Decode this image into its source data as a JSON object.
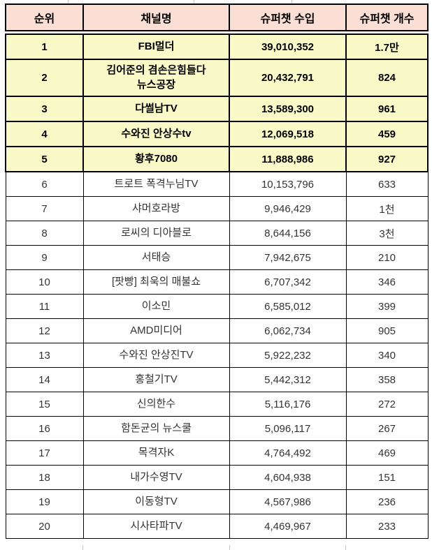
{
  "chart_data": {
    "type": "table",
    "columns": [
      "순위",
      "채널명",
      "슈퍼챗 수입",
      "슈퍼챗 개수"
    ],
    "rows": [
      {
        "rank": "1",
        "channel": "FBI멀더",
        "income": "39,010,352",
        "count": "1.7만",
        "highlight": true
      },
      {
        "rank": "2",
        "channel": "김어준의 겸손은힘들다\n뉴스공장",
        "income": "20,432,791",
        "count": "824",
        "highlight": true
      },
      {
        "rank": "3",
        "channel": "다썰남TV",
        "income": "13,589,300",
        "count": "961",
        "highlight": true
      },
      {
        "rank": "4",
        "channel": "수와진 안상수tv",
        "income": "12,069,518",
        "count": "459",
        "highlight": true
      },
      {
        "rank": "5",
        "channel": "황후7080",
        "income": "11,888,986",
        "count": "927",
        "highlight": true
      },
      {
        "rank": "6",
        "channel": "트로트 폭격누님TV",
        "income": "10,153,796",
        "count": "633",
        "highlight": false
      },
      {
        "rank": "7",
        "channel": "샤머호라방",
        "income": "9,946,429",
        "count": "1천",
        "highlight": false
      },
      {
        "rank": "8",
        "channel": "로씨의 디아블로",
        "income": "8,644,156",
        "count": "3천",
        "highlight": false
      },
      {
        "rank": "9",
        "channel": "서태승",
        "income": "7,942,675",
        "count": "210",
        "highlight": false
      },
      {
        "rank": "10",
        "channel": "[팟빵] 최욱의 매불쇼",
        "income": "6,707,342",
        "count": "346",
        "highlight": false
      },
      {
        "rank": "11",
        "channel": "이소민",
        "income": "6,585,012",
        "count": "399",
        "highlight": false
      },
      {
        "rank": "12",
        "channel": "AMD미디어",
        "income": "6,062,734",
        "count": "905",
        "highlight": false
      },
      {
        "rank": "13",
        "channel": "수와진 안상진TV",
        "income": "5,922,232",
        "count": "340",
        "highlight": false
      },
      {
        "rank": "14",
        "channel": "홍철기TV",
        "income": "5,442,312",
        "count": "358",
        "highlight": false
      },
      {
        "rank": "15",
        "channel": "신의한수",
        "income": "5,116,176",
        "count": "272",
        "highlight": false
      },
      {
        "rank": "16",
        "channel": "함돈균의 뉴스쿨",
        "income": "5,096,117",
        "count": "267",
        "highlight": false
      },
      {
        "rank": "17",
        "channel": "목격자K",
        "income": "4,764,492",
        "count": "469",
        "highlight": false
      },
      {
        "rank": "18",
        "channel": "내가수영TV",
        "income": "4,604,938",
        "count": "151",
        "highlight": false
      },
      {
        "rank": "19",
        "channel": "이동형TV",
        "income": "4,567,986",
        "count": "236",
        "highlight": false
      },
      {
        "rank": "20",
        "channel": "시사타파TV",
        "income": "4,469,967",
        "count": "233",
        "highlight": false
      }
    ]
  },
  "colors": {
    "header_bg": "#fbdfd4",
    "highlight_bg": "#fafac9",
    "border": "#000000"
  }
}
